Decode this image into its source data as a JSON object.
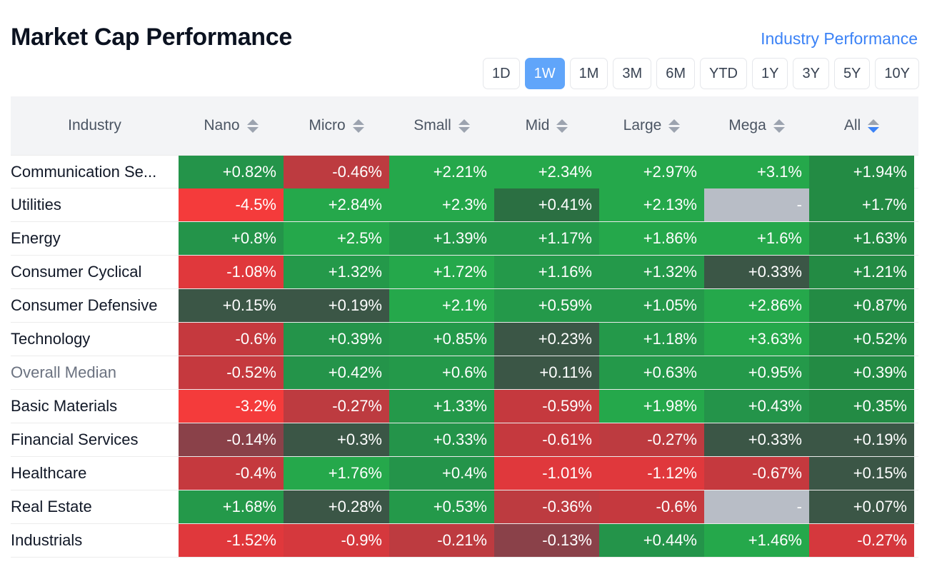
{
  "title": "Market Cap Performance",
  "industry_link": "Industry Performance",
  "periods": [
    {
      "label": "1D",
      "active": false
    },
    {
      "label": "1W",
      "active": true
    },
    {
      "label": "1M",
      "active": false
    },
    {
      "label": "3M",
      "active": false
    },
    {
      "label": "6M",
      "active": false
    },
    {
      "label": "YTD",
      "active": false
    },
    {
      "label": "1Y",
      "active": false
    },
    {
      "label": "3Y",
      "active": false
    },
    {
      "label": "5Y",
      "active": false
    },
    {
      "label": "10Y",
      "active": false
    }
  ],
  "columns": [
    "Industry",
    "Nano",
    "Micro",
    "Small",
    "Mid",
    "Large",
    "Mega",
    "All"
  ],
  "sorted_column": "All",
  "colors": {
    "strong_red": "#f43b3b",
    "red": "#e0383c",
    "mid_red": "#c5393e",
    "dark_red": "#8a4149",
    "dark_green": "#3b5646",
    "green": "#258843",
    "bright_green": "#24a84b",
    "empty": "#b8bdc6"
  },
  "rows": [
    {
      "name": "Communication Se...",
      "muted": false,
      "cells": [
        {
          "value": "+0.82%",
          "color": "#24944a"
        },
        {
          "value": "-0.46%",
          "color": "#bd3b40"
        },
        {
          "value": "+2.21%",
          "color": "#25a84b"
        },
        {
          "value": "+2.34%",
          "color": "#25a84b"
        },
        {
          "value": "+2.97%",
          "color": "#25a84b"
        },
        {
          "value": "+3.1%",
          "color": "#25a84b"
        },
        {
          "value": "+1.94%",
          "color": "#238b44"
        }
      ]
    },
    {
      "name": "Utilities",
      "muted": false,
      "cells": [
        {
          "value": "-4.5%",
          "color": "#f43b3b"
        },
        {
          "value": "+2.84%",
          "color": "#25a84b"
        },
        {
          "value": "+2.3%",
          "color": "#25a84b"
        },
        {
          "value": "+0.41%",
          "color": "#2b6f42"
        },
        {
          "value": "+2.13%",
          "color": "#25a84b"
        },
        {
          "value": "-",
          "color": "#b8bdc6"
        },
        {
          "value": "+1.7%",
          "color": "#238b44"
        }
      ]
    },
    {
      "name": "Energy",
      "muted": false,
      "cells": [
        {
          "value": "+0.8%",
          "color": "#24944a"
        },
        {
          "value": "+2.5%",
          "color": "#25a84b"
        },
        {
          "value": "+1.39%",
          "color": "#24994a"
        },
        {
          "value": "+1.17%",
          "color": "#24994a"
        },
        {
          "value": "+1.86%",
          "color": "#25a84b"
        },
        {
          "value": "+1.6%",
          "color": "#25a84b"
        },
        {
          "value": "+1.63%",
          "color": "#238b44"
        }
      ]
    },
    {
      "name": "Consumer Cyclical",
      "muted": false,
      "cells": [
        {
          "value": "-1.08%",
          "color": "#e0383c"
        },
        {
          "value": "+1.32%",
          "color": "#24994a"
        },
        {
          "value": "+1.72%",
          "color": "#25a84b"
        },
        {
          "value": "+1.16%",
          "color": "#24994a"
        },
        {
          "value": "+1.32%",
          "color": "#24994a"
        },
        {
          "value": "+0.33%",
          "color": "#3b5646"
        },
        {
          "value": "+1.21%",
          "color": "#238b44"
        }
      ]
    },
    {
      "name": "Consumer Defensive",
      "muted": false,
      "cells": [
        {
          "value": "+0.15%",
          "color": "#3b5646"
        },
        {
          "value": "+0.19%",
          "color": "#3b5646"
        },
        {
          "value": "+2.1%",
          "color": "#25a84b"
        },
        {
          "value": "+0.59%",
          "color": "#24994a"
        },
        {
          "value": "+1.05%",
          "color": "#24994a"
        },
        {
          "value": "+2.86%",
          "color": "#25a84b"
        },
        {
          "value": "+0.87%",
          "color": "#238b44"
        }
      ]
    },
    {
      "name": "Technology",
      "muted": false,
      "cells": [
        {
          "value": "-0.6%",
          "color": "#c5393e"
        },
        {
          "value": "+0.39%",
          "color": "#24944a"
        },
        {
          "value": "+0.85%",
          "color": "#24994a"
        },
        {
          "value": "+0.23%",
          "color": "#3b5646"
        },
        {
          "value": "+1.18%",
          "color": "#24994a"
        },
        {
          "value": "+3.63%",
          "color": "#25a84b"
        },
        {
          "value": "+0.52%",
          "color": "#238b44"
        }
      ]
    },
    {
      "name": "Overall Median",
      "muted": true,
      "cells": [
        {
          "value": "-0.52%",
          "color": "#c5393e"
        },
        {
          "value": "+0.42%",
          "color": "#24944a"
        },
        {
          "value": "+0.6%",
          "color": "#24994a"
        },
        {
          "value": "+0.11%",
          "color": "#3b5646"
        },
        {
          "value": "+0.63%",
          "color": "#24994a"
        },
        {
          "value": "+0.95%",
          "color": "#24994a"
        },
        {
          "value": "+0.39%",
          "color": "#238b44"
        }
      ]
    },
    {
      "name": "Basic Materials",
      "muted": false,
      "cells": [
        {
          "value": "-3.2%",
          "color": "#f43b3b"
        },
        {
          "value": "-0.27%",
          "color": "#bd3b40"
        },
        {
          "value": "+1.33%",
          "color": "#24994a"
        },
        {
          "value": "-0.59%",
          "color": "#c5393e"
        },
        {
          "value": "+1.98%",
          "color": "#25a84b"
        },
        {
          "value": "+0.43%",
          "color": "#24944a"
        },
        {
          "value": "+0.35%",
          "color": "#238b44"
        }
      ]
    },
    {
      "name": "Financial Services",
      "muted": false,
      "cells": [
        {
          "value": "-0.14%",
          "color": "#8a4149"
        },
        {
          "value": "+0.3%",
          "color": "#3b5646"
        },
        {
          "value": "+0.33%",
          "color": "#24944a"
        },
        {
          "value": "-0.61%",
          "color": "#c5393e"
        },
        {
          "value": "-0.27%",
          "color": "#bd3b40"
        },
        {
          "value": "+0.33%",
          "color": "#3b5646"
        },
        {
          "value": "+0.19%",
          "color": "#3b5646"
        }
      ]
    },
    {
      "name": "Healthcare",
      "muted": false,
      "cells": [
        {
          "value": "-0.4%",
          "color": "#c5393e"
        },
        {
          "value": "+1.76%",
          "color": "#25a84b"
        },
        {
          "value": "+0.4%",
          "color": "#24944a"
        },
        {
          "value": "-1.01%",
          "color": "#e0383c"
        },
        {
          "value": "-1.12%",
          "color": "#e0383c"
        },
        {
          "value": "-0.67%",
          "color": "#c5393e"
        },
        {
          "value": "+0.15%",
          "color": "#3b5646"
        }
      ]
    },
    {
      "name": "Real Estate",
      "muted": false,
      "cells": [
        {
          "value": "+1.68%",
          "color": "#24994a"
        },
        {
          "value": "+0.28%",
          "color": "#3b5646"
        },
        {
          "value": "+0.53%",
          "color": "#24994a"
        },
        {
          "value": "-0.36%",
          "color": "#bd3b40"
        },
        {
          "value": "-0.6%",
          "color": "#c5393e"
        },
        {
          "value": "-",
          "color": "#b8bdc6"
        },
        {
          "value": "+0.07%",
          "color": "#3b5646"
        }
      ]
    },
    {
      "name": "Industrials",
      "muted": false,
      "cells": [
        {
          "value": "-1.52%",
          "color": "#e0383c"
        },
        {
          "value": "-0.9%",
          "color": "#d5383d"
        },
        {
          "value": "-0.21%",
          "color": "#bd3b40"
        },
        {
          "value": "-0.13%",
          "color": "#8a4149"
        },
        {
          "value": "+0.44%",
          "color": "#24944a"
        },
        {
          "value": "+1.46%",
          "color": "#25a84b"
        },
        {
          "value": "-0.27%",
          "color": "#d5383d"
        }
      ]
    }
  ]
}
